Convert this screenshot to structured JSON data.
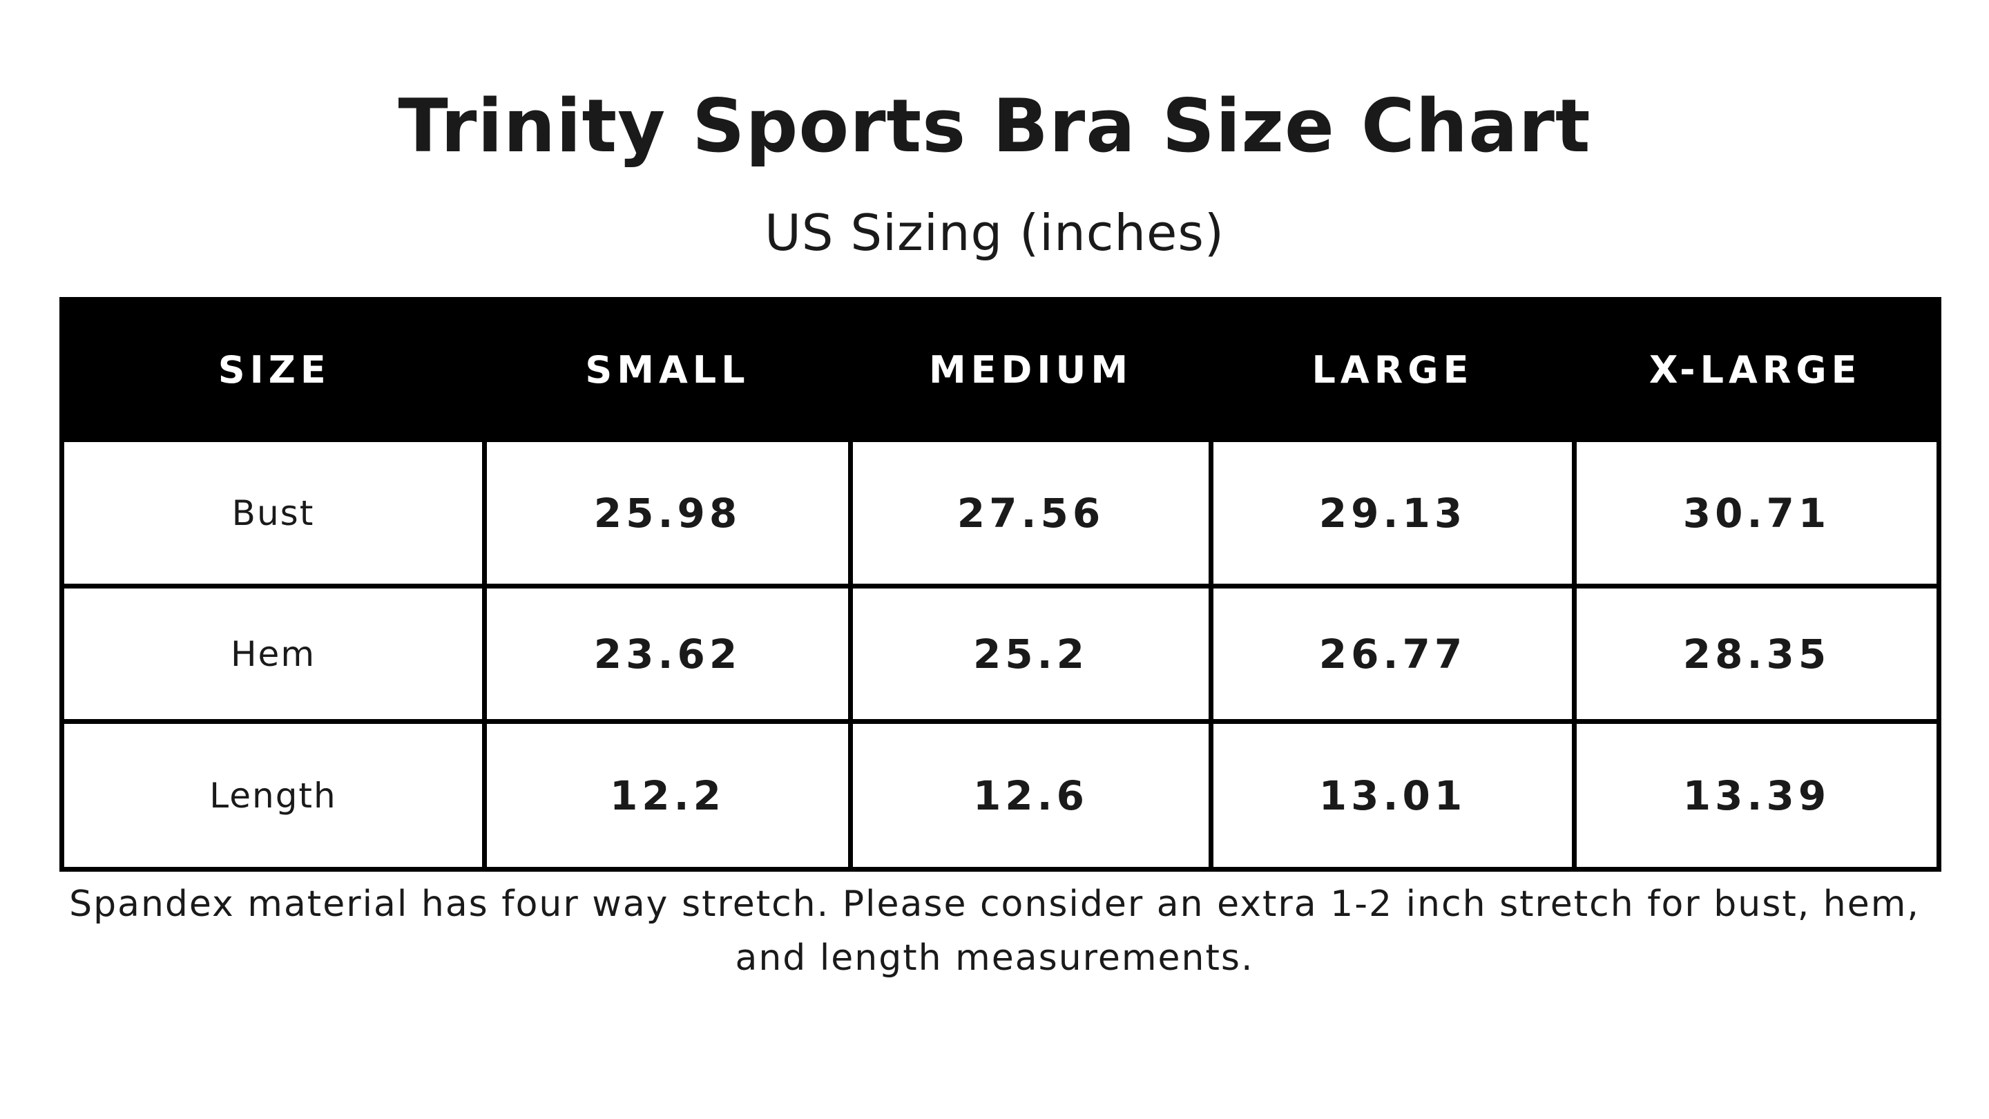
{
  "title": "Trinity Sports Bra Size Chart",
  "subtitle": "US Sizing (inches)",
  "table": {
    "headers": [
      "SIZE",
      "SMALL",
      "MEDIUM",
      "LARGE",
      "X-LARGE"
    ],
    "rows": [
      {
        "label": "Bust",
        "values": [
          "25.98",
          "27.56",
          "29.13",
          "30.71"
        ]
      },
      {
        "label": "Hem",
        "values": [
          "23.62",
          "25.2",
          "26.77",
          "28.35"
        ]
      },
      {
        "label": "Length",
        "values": [
          "12.2",
          "12.6",
          "13.01",
          "13.39"
        ]
      }
    ]
  },
  "note": "Spandex material has four way stretch. Please consider an extra 1-2 inch stretch for bust, hem, and length measurements.",
  "colors": {
    "header_bg": "#000000",
    "header_text": "#ffffff",
    "text": "#1a1a1a",
    "border": "#000000"
  }
}
